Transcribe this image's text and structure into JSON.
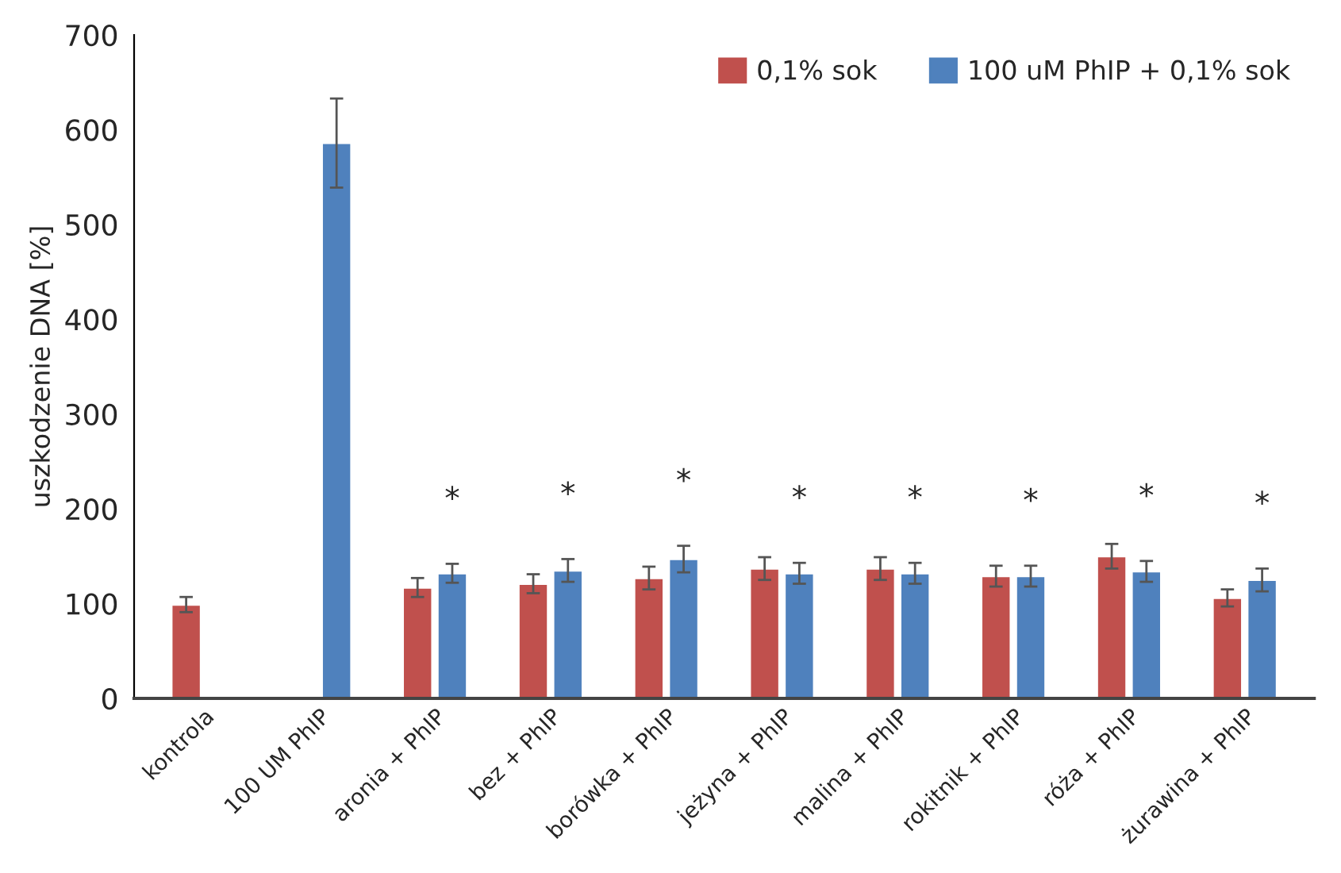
{
  "chart_data": {
    "type": "bar",
    "ylabel": "uszkodzenie DNA [%]",
    "categories": [
      "kontrola",
      "100 UM PhIP",
      "aronia + PhIP",
      "bez + PhIP",
      "borówka + PhIP",
      "jeżyna + PhIP",
      "malina + PhIP",
      "rokitnik + PhIP",
      "róża + PhIP",
      "żurawina + PhIP"
    ],
    "series": [
      {
        "name": "0,1% sok",
        "color": "#c0504d",
        "values": [
          99,
          null,
          117,
          121,
          127,
          137,
          137,
          129,
          150,
          106
        ],
        "errors": [
          8,
          null,
          10,
          10,
          12,
          12,
          12,
          11,
          13,
          9
        ]
      },
      {
        "name": "100 uM PhIP + 0,1% sok",
        "color": "#4f81bd",
        "values": [
          null,
          586,
          132,
          135,
          147,
          132,
          132,
          129,
          134,
          125
        ],
        "errors": [
          null,
          47,
          10,
          12,
          14,
          11,
          11,
          11,
          11,
          12
        ]
      }
    ],
    "ylim": [
      0,
      700
    ],
    "yticks": [
      0,
      100,
      200,
      300,
      400,
      500,
      600,
      700
    ],
    "grid": false,
    "legend": "top right",
    "annotations": [
      "*",
      "*",
      "*",
      "*",
      "*",
      "*",
      "*",
      "*"
    ]
  }
}
